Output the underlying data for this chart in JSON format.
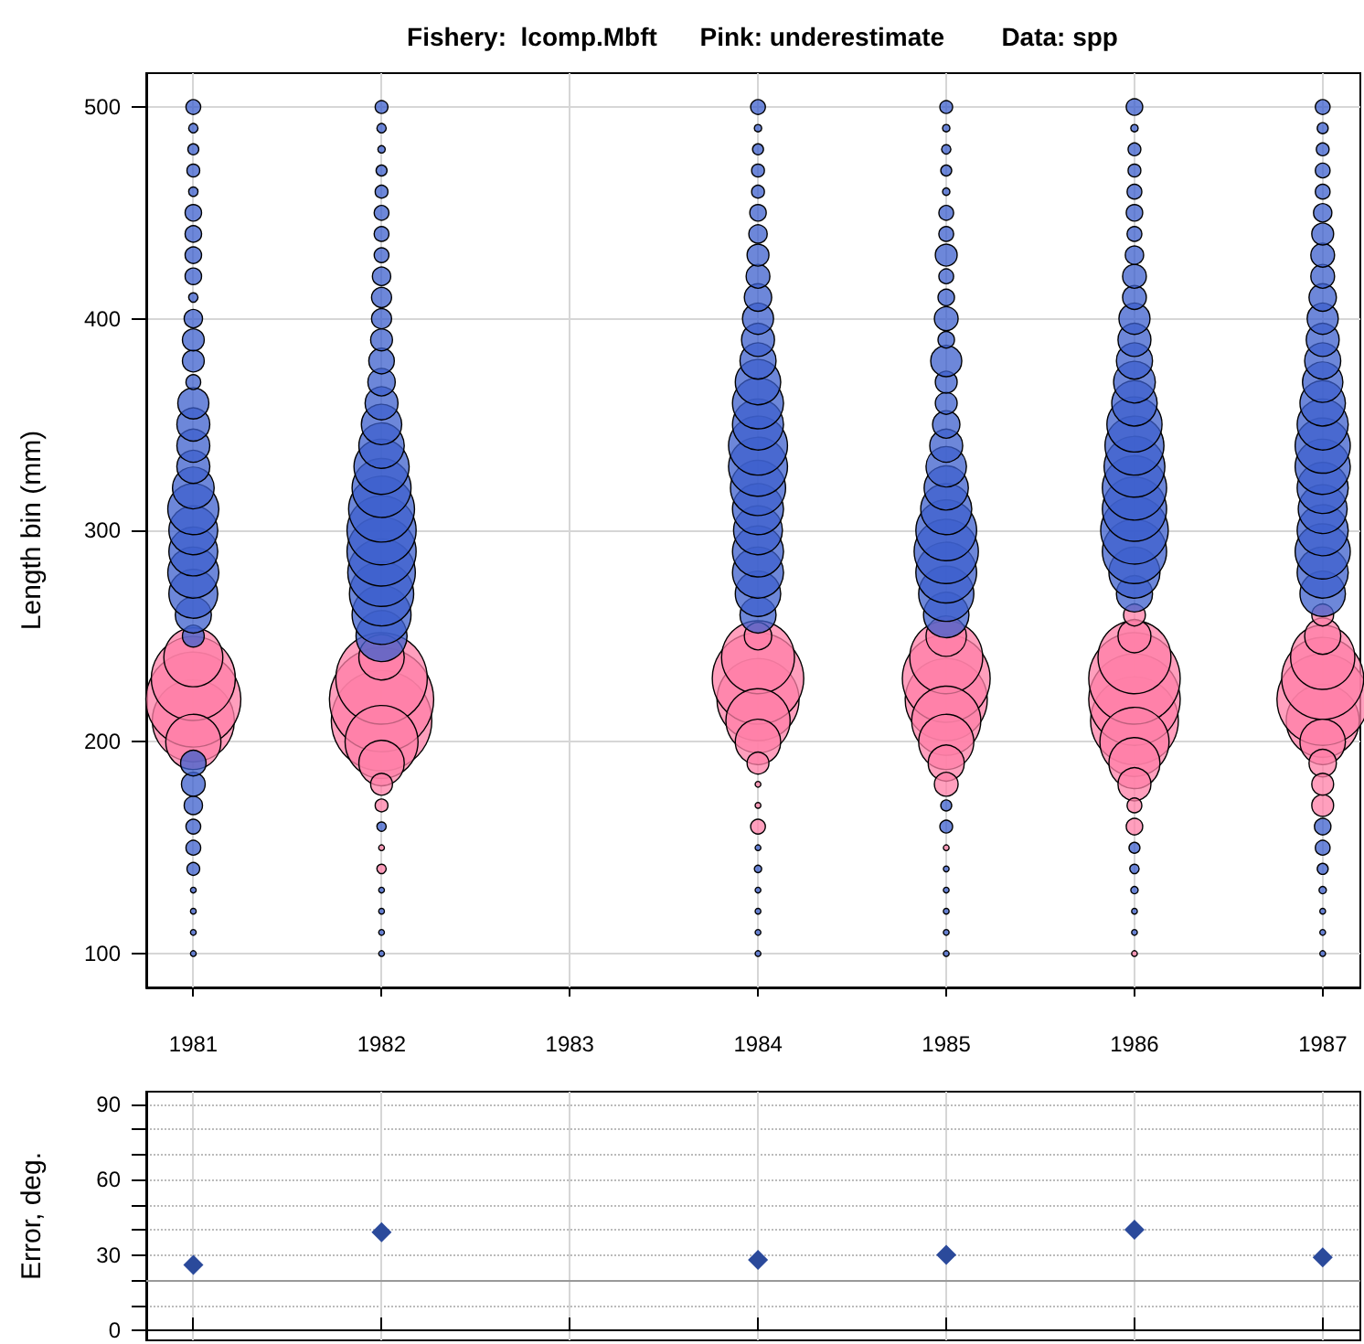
{
  "chart_data": [
    {
      "type": "bubble",
      "title": "Fishery:  lcomp.Mbft      Pink: underestimate        Data: spp",
      "ylabel": "Length bin (mm)",
      "xlim": [
        1980.75,
        1987.2
      ],
      "xticks": [
        1981,
        1982,
        1983,
        1984,
        1985,
        1986,
        1987
      ],
      "ylim": [
        84,
        516
      ],
      "yticks": [
        100,
        200,
        300,
        400,
        500
      ],
      "tick_labels": "y",
      "grid": true,
      "series": [
        {
          "color": "#ff80a8",
          "x": [
            1981,
            1981,
            1981,
            1981,
            1981,
            1982,
            1982,
            1982,
            1982,
            1982,
            1982,
            1982,
            1982,
            1982,
            1982,
            1984,
            1984,
            1984,
            1984,
            1984,
            1984,
            1984,
            1984,
            1984,
            1984,
            1985,
            1985,
            1985,
            1985,
            1985,
            1985,
            1985,
            1985,
            1985,
            1986,
            1986,
            1986,
            1986,
            1986,
            1986,
            1986,
            1986,
            1986,
            1986,
            1986,
            1986,
            1987,
            1987,
            1987,
            1987,
            1987,
            1987,
            1987,
            1987,
            1987,
            1987
          ],
          "values": [
            210,
            220,
            230,
            240,
            200,
            210,
            220,
            230,
            200,
            190,
            240,
            180,
            170,
            140,
            150,
            220,
            230,
            240,
            210,
            200,
            250,
            190,
            160,
            180,
            170,
            220,
            230,
            240,
            210,
            200,
            250,
            190,
            180,
            150,
            210,
            220,
            230,
            240,
            200,
            190,
            180,
            250,
            260,
            160,
            170,
            100,
            210,
            220,
            230,
            240,
            200,
            250,
            190,
            170,
            180,
            260
          ],
          "sizes": [
            0.62,
            0.83,
            0.65,
            0.32,
            0.28,
            0.93,
            1,
            0.77,
            0.49,
            0.19,
            0.19,
            0.044,
            0.015,
            0.008,
            0.003,
            0.62,
            0.77,
            0.49,
            0.38,
            0.19,
            0.069,
            0.044,
            0.02,
            0.003,
            0.003,
            0.62,
            0.71,
            0.49,
            0.44,
            0.28,
            0.15,
            0.12,
            0.052,
            0.003,
            0.71,
            0.77,
            0.77,
            0.49,
            0.44,
            0.24,
            0.1,
            0.1,
            0.044,
            0.025,
            0.02,
            0.003,
            0.49,
            0.77,
            0.62,
            0.38,
            0.19,
            0.12,
            0.069,
            0.044,
            0.044,
            0.044
          ]
        },
        {
          "color": "#3d5fcd",
          "x": [
            1981,
            1981,
            1981,
            1981,
            1981,
            1981,
            1981,
            1981,
            1981,
            1981,
            1981,
            1981,
            1981,
            1981,
            1981,
            1981,
            1981,
            1981,
            1981,
            1981,
            1981,
            1981,
            1981,
            1981,
            1981,
            1981,
            1981,
            1981,
            1981,
            1981,
            1981,
            1981,
            1981,
            1981,
            1981,
            1981,
            1982,
            1982,
            1982,
            1982,
            1982,
            1982,
            1982,
            1982,
            1982,
            1982,
            1982,
            1982,
            1982,
            1982,
            1982,
            1982,
            1982,
            1982,
            1982,
            1982,
            1982,
            1982,
            1982,
            1982,
            1982,
            1982,
            1982,
            1982,
            1982,
            1982,
            1982,
            1984,
            1984,
            1984,
            1984,
            1984,
            1984,
            1984,
            1984,
            1984,
            1984,
            1984,
            1984,
            1984,
            1984,
            1984,
            1984,
            1984,
            1984,
            1984,
            1984,
            1984,
            1984,
            1984,
            1984,
            1984,
            1984,
            1984,
            1984,
            1984,
            1984,
            1984,
            1985,
            1985,
            1985,
            1985,
            1985,
            1985,
            1985,
            1985,
            1985,
            1985,
            1985,
            1985,
            1985,
            1985,
            1985,
            1985,
            1985,
            1985,
            1985,
            1985,
            1985,
            1985,
            1985,
            1985,
            1985,
            1985,
            1985,
            1985,
            1985,
            1985,
            1985,
            1985,
            1986,
            1986,
            1986,
            1986,
            1986,
            1986,
            1986,
            1986,
            1986,
            1986,
            1986,
            1986,
            1986,
            1986,
            1986,
            1986,
            1986,
            1986,
            1986,
            1986,
            1986,
            1986,
            1986,
            1986,
            1986,
            1986,
            1986,
            1986,
            1986,
            1987,
            1987,
            1987,
            1987,
            1987,
            1987,
            1987,
            1987,
            1987,
            1987,
            1987,
            1987,
            1987,
            1987,
            1987,
            1987,
            1987,
            1987,
            1987,
            1987,
            1987,
            1987,
            1987,
            1987,
            1987,
            1987,
            1987,
            1987,
            1987,
            1987,
            1987
          ],
          "values": [
            100,
            110,
            120,
            130,
            140,
            150,
            160,
            170,
            180,
            190,
            250,
            260,
            270,
            280,
            290,
            300,
            310,
            320,
            330,
            340,
            350,
            360,
            370,
            380,
            390,
            400,
            410,
            420,
            430,
            440,
            450,
            460,
            470,
            480,
            490,
            500,
            100,
            110,
            120,
            130,
            160,
            250,
            260,
            270,
            280,
            290,
            300,
            310,
            320,
            330,
            340,
            350,
            360,
            370,
            380,
            390,
            400,
            410,
            420,
            430,
            440,
            450,
            460,
            470,
            480,
            490,
            500,
            100,
            110,
            120,
            130,
            140,
            150,
            260,
            270,
            280,
            290,
            300,
            310,
            320,
            330,
            340,
            350,
            360,
            370,
            380,
            390,
            400,
            410,
            420,
            430,
            440,
            450,
            460,
            470,
            480,
            490,
            500,
            100,
            110,
            120,
            130,
            140,
            160,
            170,
            260,
            270,
            280,
            290,
            300,
            310,
            320,
            330,
            340,
            350,
            360,
            370,
            380,
            390,
            400,
            410,
            420,
            430,
            440,
            450,
            460,
            470,
            480,
            490,
            500,
            110,
            120,
            130,
            140,
            150,
            270,
            280,
            290,
            300,
            310,
            320,
            330,
            340,
            350,
            360,
            370,
            380,
            390,
            400,
            410,
            420,
            430,
            440,
            450,
            460,
            470,
            480,
            490,
            500,
            100,
            110,
            120,
            130,
            140,
            150,
            160,
            270,
            280,
            290,
            300,
            310,
            320,
            330,
            340,
            350,
            360,
            370,
            380,
            390,
            400,
            410,
            420,
            430,
            440,
            450,
            460,
            470,
            480,
            490,
            500
          ],
          "sizes": [
            0.003,
            0.003,
            0.003,
            0.003,
            0.015,
            0.02,
            0.02,
            0.031,
            0.052,
            0.06,
            0.044,
            0.12,
            0.22,
            0.24,
            0.22,
            0.22,
            0.24,
            0.16,
            0.1,
            0.1,
            0.1,
            0.089,
            0.02,
            0.044,
            0.044,
            0.031,
            0.008,
            0.025,
            0.025,
            0.025,
            0.025,
            0.008,
            0.015,
            0.011,
            0.008,
            0.02,
            0.003,
            0.003,
            0.003,
            0.003,
            0.008,
            0.24,
            0.32,
            0.38,
            0.42,
            0.44,
            0.44,
            0.4,
            0.32,
            0.28,
            0.19,
            0.15,
            0.1,
            0.069,
            0.06,
            0.044,
            0.037,
            0.037,
            0.031,
            0.02,
            0.02,
            0.02,
            0.015,
            0.011,
            0.005,
            0.008,
            0.015,
            0.003,
            0.003,
            0.003,
            0.003,
            0.005,
            0.003,
            0.12,
            0.19,
            0.24,
            0.24,
            0.22,
            0.24,
            0.28,
            0.32,
            0.32,
            0.24,
            0.24,
            0.19,
            0.12,
            0.1,
            0.089,
            0.069,
            0.052,
            0.044,
            0.031,
            0.025,
            0.015,
            0.015,
            0.011,
            0.005,
            0.02,
            0.003,
            0.003,
            0.003,
            0.003,
            0.003,
            0.015,
            0.011,
            0.19,
            0.28,
            0.34,
            0.38,
            0.34,
            0.24,
            0.18,
            0.15,
            0.1,
            0.069,
            0.044,
            0.044,
            0.089,
            0.025,
            0.052,
            0.025,
            0.02,
            0.044,
            0.02,
            0.02,
            0.005,
            0.011,
            0.008,
            0.005,
            0.015,
            0.003,
            0.003,
            0.005,
            0.008,
            0.011,
            0.12,
            0.24,
            0.38,
            0.42,
            0.38,
            0.38,
            0.34,
            0.32,
            0.28,
            0.19,
            0.16,
            0.12,
            0.1,
            0.089,
            0.052,
            0.052,
            0.031,
            0.02,
            0.025,
            0.02,
            0.015,
            0.015,
            0.005,
            0.025,
            0.003,
            0.003,
            0.003,
            0.005,
            0.011,
            0.02,
            0.025,
            0.19,
            0.24,
            0.28,
            0.24,
            0.22,
            0.24,
            0.28,
            0.28,
            0.24,
            0.19,
            0.15,
            0.12,
            0.1,
            0.089,
            0.069,
            0.052,
            0.052,
            0.044,
            0.031,
            0.02,
            0.02,
            0.015,
            0.011,
            0.02
          ]
        }
      ]
    },
    {
      "type": "scatter",
      "ylabel": "Error, deg.",
      "xlim": [
        1980.75,
        1987.2
      ],
      "xticks": [
        1981,
        1982,
        1983,
        1984,
        1985,
        1986,
        1987
      ],
      "ylim": [
        -4,
        95
      ],
      "yticks": [
        0,
        {
          "value": 10,
          "label": null
        },
        {
          "value": 20,
          "label": null
        },
        30,
        {
          "value": 40,
          "label": null
        },
        {
          "value": 50,
          "label": null
        },
        60,
        {
          "value": 70,
          "label": null
        },
        {
          "value": 80,
          "label": null
        },
        90
      ],
      "grid": true,
      "marker": "diamond",
      "ref_lines": [
        {
          "axis": "y",
          "value": 20,
          "color": "#999999"
        }
      ],
      "series": [
        {
          "color": "#2b4a9b",
          "x": [
            1981,
            1982,
            1984,
            1985,
            1986,
            1987
          ],
          "values": [
            26,
            39,
            28,
            30,
            40,
            29
          ]
        }
      ]
    }
  ]
}
